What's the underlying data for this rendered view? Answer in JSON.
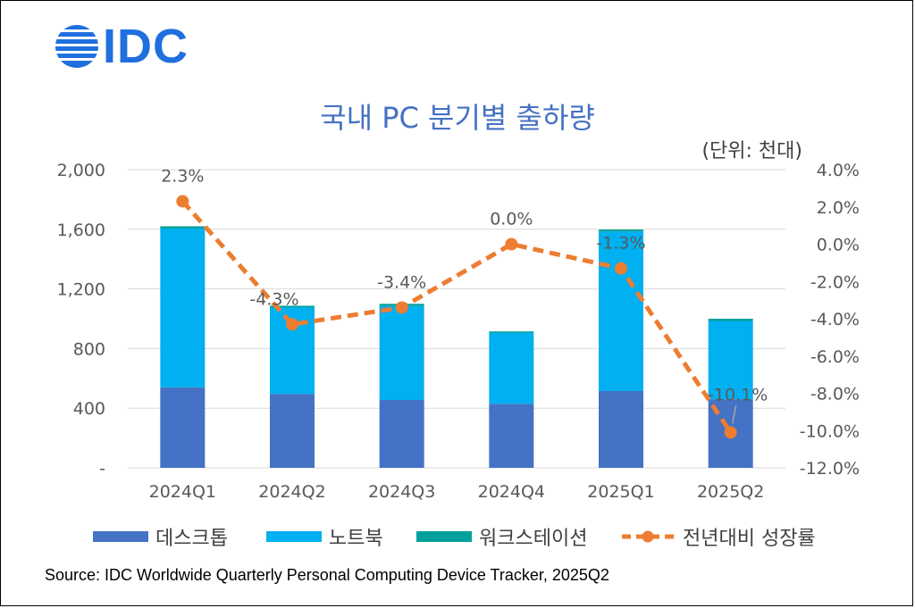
{
  "logo": {
    "text": "IDC",
    "color": "#1f6fde"
  },
  "chart_data": {
    "type": "bar",
    "stacked": true,
    "title": "국내 PC 분기별 출하량",
    "unit_label": "(단위: 천대)",
    "categories": [
      "2024Q1",
      "2024Q2",
      "2024Q3",
      "2024Q4",
      "2025Q1",
      "2025Q2"
    ],
    "series": [
      {
        "name": "데스크톱",
        "type": "bar",
        "axis": "left",
        "color": "#4472c4",
        "values": [
          540,
          495,
          455,
          430,
          515,
          460
        ]
      },
      {
        "name": "노트북",
        "type": "bar",
        "axis": "left",
        "color": "#00b0f0",
        "values": [
          1065,
          580,
          630,
          475,
          1070,
          525
        ]
      },
      {
        "name": "워크스테이션",
        "type": "bar",
        "axis": "left",
        "color": "#00a19c",
        "values": [
          15,
          12,
          15,
          10,
          13,
          15
        ]
      },
      {
        "name": "전년대비 성장률",
        "type": "line",
        "axis": "right",
        "color": "#ed7d31",
        "dashed": true,
        "values": [
          2.3,
          -4.3,
          -3.4,
          0.0,
          -1.3,
          -10.1
        ],
        "data_labels": [
          "2.3%",
          "-4.3%",
          "-3.4%",
          "0.0%",
          "-1.3%",
          "-10.1%"
        ]
      }
    ],
    "y_left": {
      "ylim": [
        0,
        2000
      ],
      "ticks": [
        0,
        400,
        800,
        1200,
        1600,
        2000
      ],
      "tick_labels": [
        "-",
        "400",
        "800",
        "1,200",
        "1,600",
        "2,000"
      ]
    },
    "y_right": {
      "ylim": [
        -12,
        4
      ],
      "ticks": [
        4,
        2,
        0,
        -2,
        -4,
        -6,
        -8,
        -10,
        -12
      ],
      "tick_labels": [
        "4.0%",
        "2.0%",
        "0.0%",
        "-2.0%",
        "-4.0%",
        "-6.0%",
        "-8.0%",
        "-10.0%",
        "-12.0%"
      ]
    },
    "grid": true,
    "legend_position": "bottom",
    "title_color": "#4472c4",
    "text_color": "#595959",
    "grid_color": "#d9d9d9"
  },
  "source": "Source: IDC Worldwide Quarterly Personal Computing Device Tracker, 2025Q2"
}
